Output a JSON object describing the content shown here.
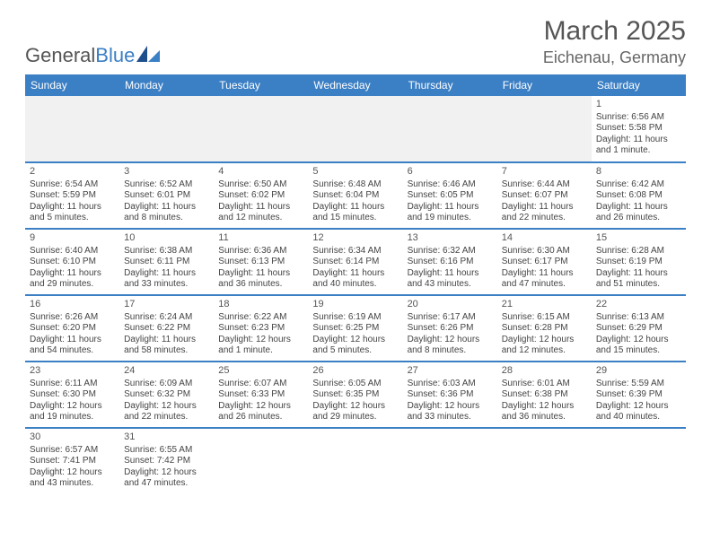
{
  "brand": {
    "name1": "General",
    "name2": "Blue"
  },
  "title": "March 2025",
  "location": "Eichenau, Germany",
  "colors": {
    "header_bg": "#3b7fc4",
    "header_text": "#ffffff",
    "blank_bg": "#f1f1f1",
    "divider": "#3b7fc4",
    "body_text": "#444444",
    "title_text": "#555555"
  },
  "day_headers": [
    "Sunday",
    "Monday",
    "Tuesday",
    "Wednesday",
    "Thursday",
    "Friday",
    "Saturday"
  ],
  "weeks": [
    [
      {
        "blank": true
      },
      {
        "blank": true
      },
      {
        "blank": true
      },
      {
        "blank": true
      },
      {
        "blank": true
      },
      {
        "blank": true
      },
      {
        "day": "1",
        "sunrise": "Sunrise: 6:56 AM",
        "sunset": "Sunset: 5:58 PM",
        "daylight1": "Daylight: 11 hours",
        "daylight2": "and 1 minute."
      }
    ],
    [
      {
        "day": "2",
        "sunrise": "Sunrise: 6:54 AM",
        "sunset": "Sunset: 5:59 PM",
        "daylight1": "Daylight: 11 hours",
        "daylight2": "and 5 minutes."
      },
      {
        "day": "3",
        "sunrise": "Sunrise: 6:52 AM",
        "sunset": "Sunset: 6:01 PM",
        "daylight1": "Daylight: 11 hours",
        "daylight2": "and 8 minutes."
      },
      {
        "day": "4",
        "sunrise": "Sunrise: 6:50 AM",
        "sunset": "Sunset: 6:02 PM",
        "daylight1": "Daylight: 11 hours",
        "daylight2": "and 12 minutes."
      },
      {
        "day": "5",
        "sunrise": "Sunrise: 6:48 AM",
        "sunset": "Sunset: 6:04 PM",
        "daylight1": "Daylight: 11 hours",
        "daylight2": "and 15 minutes."
      },
      {
        "day": "6",
        "sunrise": "Sunrise: 6:46 AM",
        "sunset": "Sunset: 6:05 PM",
        "daylight1": "Daylight: 11 hours",
        "daylight2": "and 19 minutes."
      },
      {
        "day": "7",
        "sunrise": "Sunrise: 6:44 AM",
        "sunset": "Sunset: 6:07 PM",
        "daylight1": "Daylight: 11 hours",
        "daylight2": "and 22 minutes."
      },
      {
        "day": "8",
        "sunrise": "Sunrise: 6:42 AM",
        "sunset": "Sunset: 6:08 PM",
        "daylight1": "Daylight: 11 hours",
        "daylight2": "and 26 minutes."
      }
    ],
    [
      {
        "day": "9",
        "sunrise": "Sunrise: 6:40 AM",
        "sunset": "Sunset: 6:10 PM",
        "daylight1": "Daylight: 11 hours",
        "daylight2": "and 29 minutes."
      },
      {
        "day": "10",
        "sunrise": "Sunrise: 6:38 AM",
        "sunset": "Sunset: 6:11 PM",
        "daylight1": "Daylight: 11 hours",
        "daylight2": "and 33 minutes."
      },
      {
        "day": "11",
        "sunrise": "Sunrise: 6:36 AM",
        "sunset": "Sunset: 6:13 PM",
        "daylight1": "Daylight: 11 hours",
        "daylight2": "and 36 minutes."
      },
      {
        "day": "12",
        "sunrise": "Sunrise: 6:34 AM",
        "sunset": "Sunset: 6:14 PM",
        "daylight1": "Daylight: 11 hours",
        "daylight2": "and 40 minutes."
      },
      {
        "day": "13",
        "sunrise": "Sunrise: 6:32 AM",
        "sunset": "Sunset: 6:16 PM",
        "daylight1": "Daylight: 11 hours",
        "daylight2": "and 43 minutes."
      },
      {
        "day": "14",
        "sunrise": "Sunrise: 6:30 AM",
        "sunset": "Sunset: 6:17 PM",
        "daylight1": "Daylight: 11 hours",
        "daylight2": "and 47 minutes."
      },
      {
        "day": "15",
        "sunrise": "Sunrise: 6:28 AM",
        "sunset": "Sunset: 6:19 PM",
        "daylight1": "Daylight: 11 hours",
        "daylight2": "and 51 minutes."
      }
    ],
    [
      {
        "day": "16",
        "sunrise": "Sunrise: 6:26 AM",
        "sunset": "Sunset: 6:20 PM",
        "daylight1": "Daylight: 11 hours",
        "daylight2": "and 54 minutes."
      },
      {
        "day": "17",
        "sunrise": "Sunrise: 6:24 AM",
        "sunset": "Sunset: 6:22 PM",
        "daylight1": "Daylight: 11 hours",
        "daylight2": "and 58 minutes."
      },
      {
        "day": "18",
        "sunrise": "Sunrise: 6:22 AM",
        "sunset": "Sunset: 6:23 PM",
        "daylight1": "Daylight: 12 hours",
        "daylight2": "and 1 minute."
      },
      {
        "day": "19",
        "sunrise": "Sunrise: 6:19 AM",
        "sunset": "Sunset: 6:25 PM",
        "daylight1": "Daylight: 12 hours",
        "daylight2": "and 5 minutes."
      },
      {
        "day": "20",
        "sunrise": "Sunrise: 6:17 AM",
        "sunset": "Sunset: 6:26 PM",
        "daylight1": "Daylight: 12 hours",
        "daylight2": "and 8 minutes."
      },
      {
        "day": "21",
        "sunrise": "Sunrise: 6:15 AM",
        "sunset": "Sunset: 6:28 PM",
        "daylight1": "Daylight: 12 hours",
        "daylight2": "and 12 minutes."
      },
      {
        "day": "22",
        "sunrise": "Sunrise: 6:13 AM",
        "sunset": "Sunset: 6:29 PM",
        "daylight1": "Daylight: 12 hours",
        "daylight2": "and 15 minutes."
      }
    ],
    [
      {
        "day": "23",
        "sunrise": "Sunrise: 6:11 AM",
        "sunset": "Sunset: 6:30 PM",
        "daylight1": "Daylight: 12 hours",
        "daylight2": "and 19 minutes."
      },
      {
        "day": "24",
        "sunrise": "Sunrise: 6:09 AM",
        "sunset": "Sunset: 6:32 PM",
        "daylight1": "Daylight: 12 hours",
        "daylight2": "and 22 minutes."
      },
      {
        "day": "25",
        "sunrise": "Sunrise: 6:07 AM",
        "sunset": "Sunset: 6:33 PM",
        "daylight1": "Daylight: 12 hours",
        "daylight2": "and 26 minutes."
      },
      {
        "day": "26",
        "sunrise": "Sunrise: 6:05 AM",
        "sunset": "Sunset: 6:35 PM",
        "daylight1": "Daylight: 12 hours",
        "daylight2": "and 29 minutes."
      },
      {
        "day": "27",
        "sunrise": "Sunrise: 6:03 AM",
        "sunset": "Sunset: 6:36 PM",
        "daylight1": "Daylight: 12 hours",
        "daylight2": "and 33 minutes."
      },
      {
        "day": "28",
        "sunrise": "Sunrise: 6:01 AM",
        "sunset": "Sunset: 6:38 PM",
        "daylight1": "Daylight: 12 hours",
        "daylight2": "and 36 minutes."
      },
      {
        "day": "29",
        "sunrise": "Sunrise: 5:59 AM",
        "sunset": "Sunset: 6:39 PM",
        "daylight1": "Daylight: 12 hours",
        "daylight2": "and 40 minutes."
      }
    ],
    [
      {
        "day": "30",
        "sunrise": "Sunrise: 6:57 AM",
        "sunset": "Sunset: 7:41 PM",
        "daylight1": "Daylight: 12 hours",
        "daylight2": "and 43 minutes."
      },
      {
        "day": "31",
        "sunrise": "Sunrise: 6:55 AM",
        "sunset": "Sunset: 7:42 PM",
        "daylight1": "Daylight: 12 hours",
        "daylight2": "and 47 minutes."
      },
      {
        "trailing_blank": true
      },
      {
        "trailing_blank": true
      },
      {
        "trailing_blank": true
      },
      {
        "trailing_blank": true
      },
      {
        "trailing_blank": true
      }
    ]
  ]
}
